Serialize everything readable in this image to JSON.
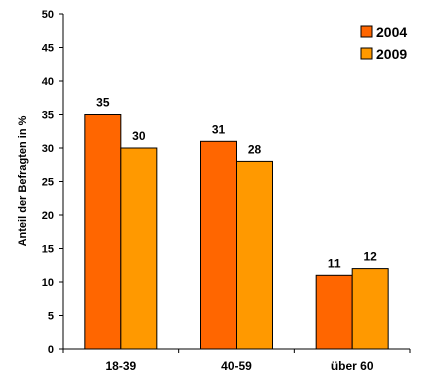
{
  "chart_data": {
    "type": "bar",
    "categories": [
      "18-39",
      "40-59",
      "über 60"
    ],
    "series": [
      {
        "name": "2004",
        "values": [
          35,
          31,
          11
        ],
        "color": "#FF6600"
      },
      {
        "name": "2009",
        "values": [
          30,
          28,
          12
        ],
        "color": "#FF9900"
      }
    ],
    "ylabel": "Anteil der Befragten in %",
    "xlabel": "",
    "ylim": [
      0,
      50
    ],
    "yticks": [
      0,
      5,
      10,
      15,
      20,
      25,
      30,
      35,
      40,
      45,
      50
    ],
    "grid": false,
    "legend_position": "top-right",
    "data_labels": true
  }
}
